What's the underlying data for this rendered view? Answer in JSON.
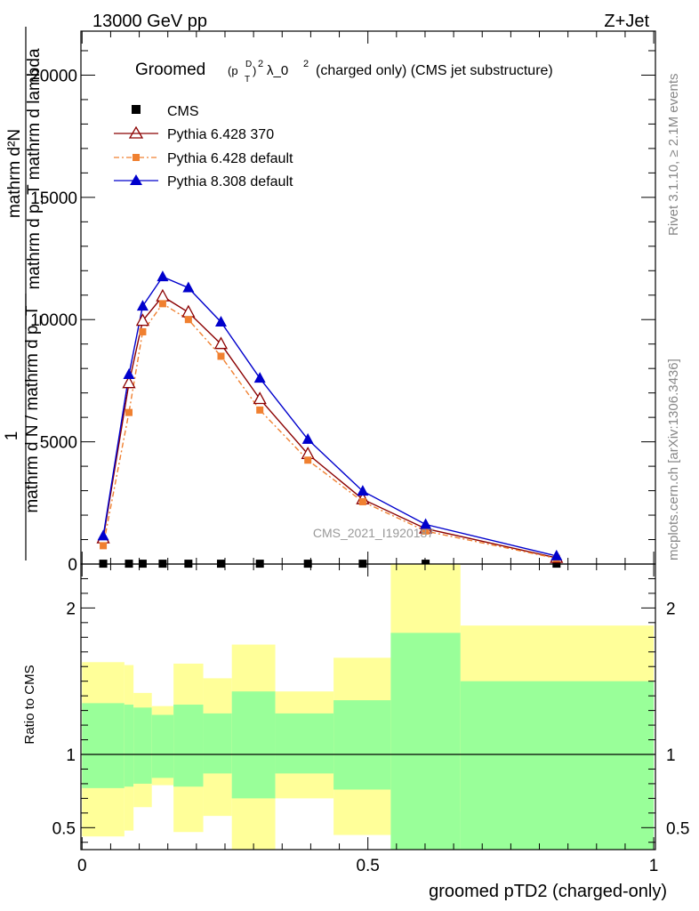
{
  "header": {
    "left_label": "13000 GeV pp",
    "right_label": "Z+Jet"
  },
  "side_labels": {
    "rivet": "Rivet 3.1.10, ≥ 2.1M events",
    "mcplots": "mcplots.cern.ch [arXiv:1306.3436]"
  },
  "watermark": "CMS_2021_I1920187",
  "colors": {
    "cms": "#000000",
    "py6_370": "#8b0000",
    "py6_default": "#f08030",
    "py8": "#0000cc",
    "band_outer": "#ffff99",
    "band_inner": "#99ff99"
  },
  "chart_data": [
    {
      "type": "line",
      "title_main": "Groomed",
      "title_math_p": "(p",
      "title_math_sub": "T",
      "title_math_sup": "D",
      "title_math_close": ")",
      "title_math_sq": "2",
      "title_lambda": "λ_0",
      "title_lambda_sup": "2",
      "title_tail": "(charged only) (CMS jet substructure)",
      "ylabel_numer": "mathrm d²N",
      "ylabel_denom": "mathrm d p_T mathrm d lambda",
      "ylabel_prefix_numer": "1",
      "ylabel_prefix_denom": "mathrm d N / mathrm d p_T",
      "ylim": [
        0,
        21800
      ],
      "xlim": [
        -0.002,
        1.003
      ],
      "y_ticks": [
        0,
        5000,
        10000,
        15000,
        20000
      ],
      "y_tick_labels": [
        "0",
        "5000",
        "10000",
        "15000",
        "20000"
      ],
      "legend": [
        "CMS",
        "Pythia 6.428 370",
        "Pythia 6.428 default",
        "Pythia 8.308 default"
      ],
      "legend_position": "top-left",
      "x": [
        0.037,
        0.082,
        0.106,
        0.141,
        0.186,
        0.243,
        0.311,
        0.395,
        0.491,
        0.601,
        0.83
      ],
      "series": [
        {
          "name": "CMS",
          "values": [
            15,
            15,
            15,
            15,
            15,
            15,
            15,
            15,
            15,
            15,
            15
          ]
        },
        {
          "name": "Pythia 6.428 370",
          "values": [
            1050,
            7400,
            9950,
            10950,
            10300,
            9000,
            6750,
            4500,
            2650,
            1450,
            250
          ]
        },
        {
          "name": "Pythia 6.428 default",
          "values": [
            750,
            6200,
            9500,
            10650,
            10000,
            8500,
            6300,
            4250,
            2550,
            1350,
            230
          ]
        },
        {
          "name": "Pythia 8.308 default",
          "values": [
            1150,
            7750,
            10550,
            11750,
            11300,
            9900,
            7600,
            5100,
            2980,
            1620,
            330
          ]
        }
      ]
    },
    {
      "type": "area",
      "ylabel": "Ratio to CMS",
      "xlabel": "groomed pTD2 (charged-only)",
      "ylim": [
        0.35,
        2.3
      ],
      "xlim": [
        -0.002,
        1.003
      ],
      "y_ticks": [
        0.5,
        1,
        2
      ],
      "y_tick_labels": [
        "0.5",
        "1",
        "2"
      ],
      "x_ticks": [
        0,
        0.5,
        1
      ],
      "x_tick_labels": [
        "0",
        "0.5",
        "1"
      ],
      "bins": [
        0.0,
        0.074,
        0.09,
        0.122,
        0.16,
        0.212,
        0.262,
        0.338,
        0.44,
        0.54,
        0.662,
        1.0
      ],
      "inner_low": [
        0.77,
        0.78,
        0.8,
        0.84,
        0.78,
        0.87,
        0.7,
        0.87,
        0.76,
        0.35,
        0.35
      ],
      "inner_high": [
        1.35,
        1.34,
        1.32,
        1.27,
        1.34,
        1.28,
        1.43,
        1.28,
        1.37,
        1.83,
        1.5
      ],
      "outer_low": [
        0.44,
        0.48,
        0.64,
        0.79,
        0.47,
        0.58,
        0.35,
        0.7,
        0.45,
        0.35,
        0.61
      ],
      "outer_high": [
        1.63,
        1.61,
        1.42,
        1.33,
        1.62,
        1.52,
        1.75,
        1.43,
        1.66,
        2.3,
        1.88
      ],
      "reference_line": 1
    }
  ]
}
